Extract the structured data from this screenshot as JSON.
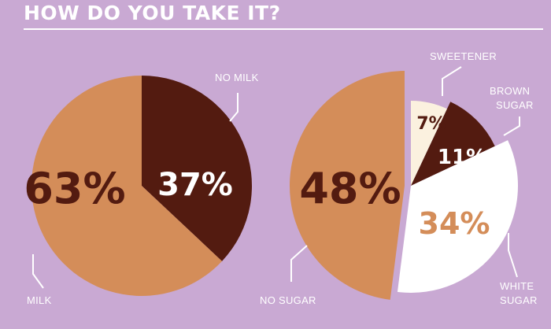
{
  "header": {
    "title": "HOW DO YOU TAKE IT?"
  },
  "colors": {
    "background": "#c9a9d3",
    "light_brown": "#d48d59",
    "dark_brown": "#531b10",
    "cream": "#fbf1df",
    "white": "#ffffff"
  },
  "chart_data": [
    {
      "type": "pie",
      "slices": [
        {
          "label": "NO MILK",
          "value": 37,
          "display": "37%",
          "color": "#531b10",
          "text_color": "#ffffff"
        },
        {
          "label": "MILK",
          "value": 63,
          "display": "63%",
          "color": "#d48d59",
          "text_color": "#531b10"
        }
      ]
    },
    {
      "type": "pie",
      "slices": [
        {
          "label": "SWEETENER",
          "value": 7,
          "display": "7%",
          "color": "#fbf1df",
          "text_color": "#531b10"
        },
        {
          "label": "BROWN SUGAR",
          "value": 11,
          "display": "11%",
          "color": "#531b10",
          "text_color": "#ffffff"
        },
        {
          "label": "WHITE SUGAR",
          "value": 34,
          "display": "34%",
          "color": "#ffffff",
          "text_color": "#d48d59"
        },
        {
          "label": "NO SUGAR",
          "value": 48,
          "display": "48%",
          "color": "#d48d59",
          "text_color": "#531b10"
        }
      ]
    }
  ]
}
